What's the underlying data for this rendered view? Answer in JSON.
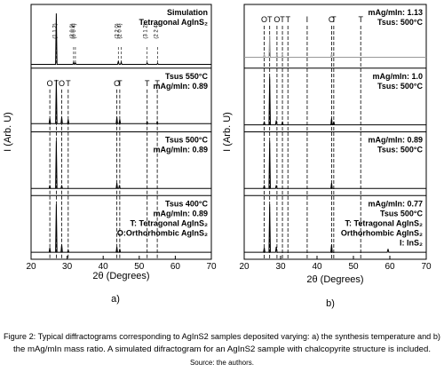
{
  "chart_data": [
    {
      "type": "line",
      "label": "a)",
      "xlabel": "2θ (Degrees)",
      "ylabel": "I (Arb. U)",
      "xlim": [
        20,
        70
      ],
      "xticks": [
        20,
        30,
        40,
        50,
        60,
        70
      ],
      "ylim": [
        0,
        100
      ],
      "series": [
        {
          "color": "#000000",
          "notes": [
            "Simulation",
            "Tetragonal AgInS₂"
          ],
          "x": [
            20,
            26.8,
            27,
            27.2,
            31.6,
            31.8,
            32,
            32.1,
            32.3,
            32.5,
            44,
            44.2,
            44.4,
            44.8,
            45,
            45.2,
            52,
            52.2,
            52.4,
            54.9,
            55.1,
            55.3,
            70
          ],
          "values": [
            2,
            2,
            95,
            2,
            2,
            6,
            2,
            2,
            5,
            2,
            2,
            8,
            2,
            2,
            6,
            2,
            2,
            5,
            2,
            2,
            4,
            2,
            2
          ],
          "hkl": [
            {
              "x": 27,
              "label": "(1 1 2)"
            },
            {
              "x": 31.8,
              "label": "(2 0 0)"
            },
            {
              "x": 32.3,
              "label": "(0 0 4)"
            },
            {
              "x": 44.2,
              "label": "(2 2 0)"
            },
            {
              "x": 45,
              "label": "(2 0 4)"
            },
            {
              "x": 52.2,
              "label": "(3 1 2)"
            },
            {
              "x": 55.1,
              "label": "(2 2 4)"
            }
          ]
        },
        {
          "color": "#000000",
          "notes": [
            "Tsus 550°C",
            "mAg/mIn: 0.89"
          ],
          "x": [
            20,
            25,
            25.2,
            25.4,
            26.8,
            27,
            27.2,
            28.3,
            28.5,
            28.7,
            30.1,
            30.3,
            30.5,
            43.6,
            43.8,
            44,
            44.4,
            44.6,
            44.8,
            52,
            52.2,
            52.4,
            54.8,
            55,
            55.2,
            70
          ],
          "values": [
            10,
            10,
            20,
            10,
            10,
            90,
            10,
            10,
            22,
            10,
            10,
            18,
            10,
            10,
            22,
            10,
            10,
            18,
            10,
            10,
            14,
            10,
            10,
            14,
            10,
            10
          ],
          "markers": [
            {
              "x": 25.2,
              "label": "O"
            },
            {
              "x": 27,
              "label": "T"
            },
            {
              "x": 28.5,
              "label": "O"
            },
            {
              "x": 30.3,
              "label": "T"
            },
            {
              "x": 43.8,
              "label": "O"
            },
            {
              "x": 44.6,
              "label": "T"
            },
            {
              "x": 52.2,
              "label": "T"
            },
            {
              "x": 55,
              "label": "T"
            }
          ]
        },
        {
          "color": "#000000",
          "notes": [
            "Tsus 500°C",
            "mAg/mIn: 0.89"
          ],
          "x": [
            20,
            25,
            25.2,
            25.4,
            26.8,
            27,
            27.2,
            28.3,
            28.5,
            28.7,
            43.6,
            43.8,
            44,
            44.3,
            44.5,
            44.7,
            70
          ],
          "values": [
            8,
            8,
            14,
            8,
            8,
            95,
            8,
            8,
            14,
            8,
            8,
            18,
            8,
            8,
            14,
            8,
            8
          ]
        },
        {
          "color": "#000000",
          "notes": [
            "Tsus 400°C",
            "mAg/mIn: 0.89",
            "T: Tetragonal AgInS₂",
            "O:Orthorhombic AgInS₂"
          ],
          "x": [
            20,
            25,
            25.2,
            25.4,
            26.8,
            27,
            27.2,
            28.3,
            28.5,
            28.7,
            30.1,
            30.3,
            30.5,
            43.6,
            43.8,
            44,
            44.4,
            44.6,
            44.8,
            70
          ],
          "values": [
            8,
            8,
            16,
            8,
            8,
            95,
            8,
            8,
            22,
            8,
            8,
            12,
            8,
            8,
            18,
            8,
            8,
            14,
            8,
            8
          ]
        }
      ]
    },
    {
      "type": "line",
      "label": "b)",
      "xlabel": "2θ (Degrees)",
      "ylabel": "I (Arb. U)",
      "xlim": [
        20,
        70
      ],
      "xticks": [
        20,
        30,
        40,
        50,
        60,
        70
      ],
      "ylim": [
        0,
        100
      ],
      "series": [
        {
          "color": "#999999",
          "notes": [
            "mAg/mIn: 1.13",
            "Tsus: 500°C"
          ],
          "x": [
            20,
            25.3,
            25.5,
            25.7,
            26.8,
            27,
            27.2,
            28.8,
            29,
            29.2,
            30.3,
            30.5,
            30.7,
            43.8,
            44,
            44.2,
            70
          ],
          "values": [
            15,
            15,
            20,
            15,
            15,
            55,
            15,
            15,
            20,
            15,
            15,
            20,
            15,
            15,
            22,
            15,
            15
          ],
          "markers": [
            {
              "x": 25.5,
              "label": "O"
            },
            {
              "x": 27,
              "label": "T"
            },
            {
              "x": 29,
              "label": "O"
            },
            {
              "x": 30.5,
              "label": "T"
            },
            {
              "x": 32,
              "label": "T"
            },
            {
              "x": 37.3,
              "label": "I"
            },
            {
              "x": 44,
              "label": "O"
            },
            {
              "x": 44.6,
              "label": "T"
            },
            {
              "x": 52,
              "label": "T"
            }
          ]
        },
        {
          "color": "#000000",
          "notes": [
            "mAg/mIn: 1.0",
            "Tsus: 500°C"
          ],
          "x": [
            20,
            25.3,
            25.5,
            25.7,
            26.8,
            27,
            27.2,
            28.6,
            28.8,
            29,
            30.3,
            30.5,
            30.7,
            43.8,
            44,
            44.2,
            44.4,
            44.6,
            44.8,
            70
          ],
          "values": [
            8,
            8,
            14,
            8,
            8,
            95,
            8,
            8,
            16,
            8,
            8,
            14,
            8,
            8,
            20,
            8,
            8,
            14,
            8,
            8
          ]
        },
        {
          "color": "#000000",
          "notes": [
            "mAg/mIn: 0.89",
            "Tsus: 500°C"
          ],
          "x": [
            20,
            25.3,
            25.5,
            25.7,
            26.8,
            27,
            27.2,
            28.6,
            28.8,
            29,
            43.8,
            44,
            44.2,
            70
          ],
          "values": [
            8,
            8,
            14,
            8,
            8,
            95,
            8,
            8,
            14,
            8,
            8,
            18,
            8,
            8
          ]
        },
        {
          "color": "#000000",
          "notes": [
            "mAg/mIn: 0.77",
            "Tsus 500°C",
            "T: Tetragonal AgInS₂",
            "Orthorhombic AgInS₂",
            "I: InS₂"
          ],
          "x": [
            20,
            25.3,
            25.5,
            25.7,
            26.8,
            27,
            27.2,
            28.6,
            28.8,
            29,
            43.8,
            44,
            44.2,
            59.3,
            59.5,
            59.7,
            70
          ],
          "values": [
            8,
            8,
            16,
            8,
            8,
            95,
            8,
            8,
            18,
            8,
            8,
            22,
            8,
            8,
            14,
            8,
            8
          ]
        }
      ]
    }
  ],
  "caption": [
    "Figure 2: Typical diffractograms corresponding to AgInS2 samples deposited varying: a) the synthesis temperature and b)",
    "the mAg/mIn mass ratio. A simulated difractogram for an AgInS2 sample with chalcopyrite structure is included."
  ],
  "source": "Source: the authors."
}
